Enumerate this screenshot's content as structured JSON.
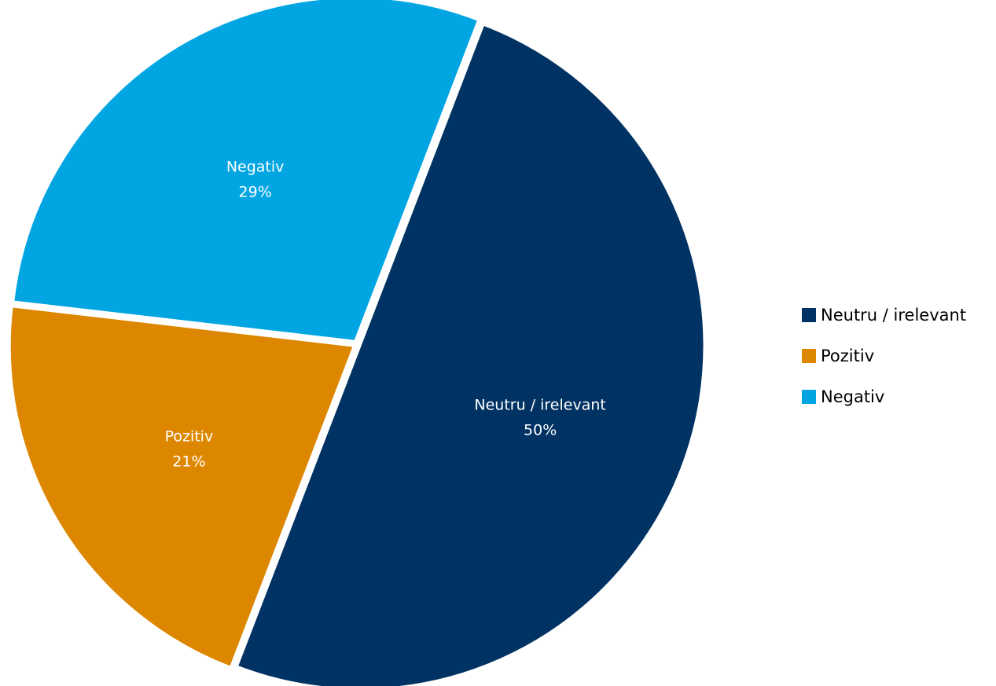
{
  "chart_data": {
    "type": "pie",
    "slices": [
      {
        "label": "Neutru / irelevant",
        "value": 50,
        "display": "50%",
        "color": "#003263"
      },
      {
        "label": "Pozitiv",
        "value": 21,
        "display": "21%",
        "color": "#dd8700"
      },
      {
        "label": "Negativ",
        "value": 29,
        "display": "29%",
        "color": "#00a5e2"
      }
    ],
    "start_angle_deg": 21,
    "direction": "clockwise",
    "legend": {
      "position": "right",
      "entries": [
        "Neutru / irelevant",
        "Pozitiv",
        "Negativ"
      ]
    }
  }
}
